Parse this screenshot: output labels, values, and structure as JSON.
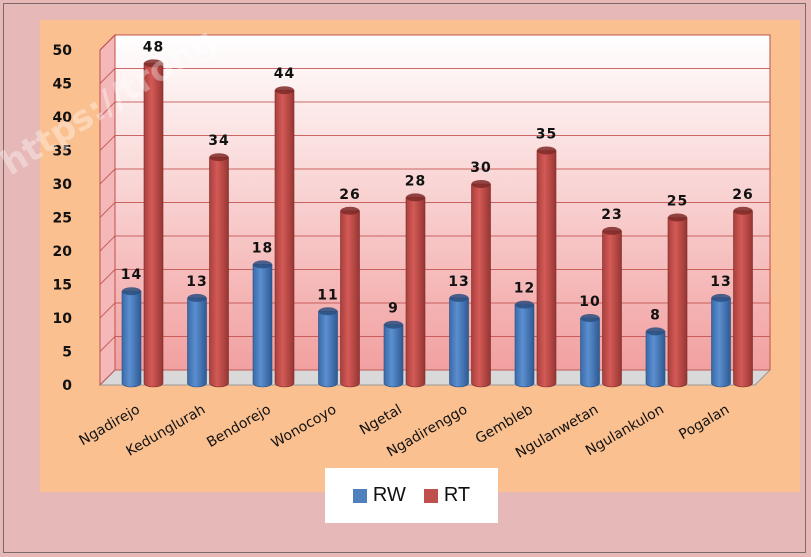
{
  "chart_data": {
    "type": "bar",
    "categories": [
      "Ngadirejo",
      "Kedunglurah",
      "Bendorejo",
      "Wonocoyo",
      "Ngetal",
      "Ngadirenggo",
      "Gembleb",
      "Ngulanwetan",
      "Ngulankulon",
      "Pogalan"
    ],
    "series": [
      {
        "name": "RW",
        "color": "#4f81bd",
        "values": [
          14,
          13,
          18,
          11,
          9,
          13,
          12,
          10,
          8,
          13
        ]
      },
      {
        "name": "RT",
        "color": "#c0504d",
        "values": [
          48,
          34,
          44,
          26,
          28,
          30,
          35,
          23,
          25,
          26
        ]
      }
    ],
    "ylim": [
      0,
      50
    ],
    "yticks": [
      0,
      5,
      10,
      15,
      20,
      25,
      30,
      35,
      40,
      45,
      50
    ],
    "grid": true,
    "legend_position": "bottom",
    "title": "",
    "xlabel": "",
    "ylabel": ""
  },
  "watermark": "https://trong"
}
